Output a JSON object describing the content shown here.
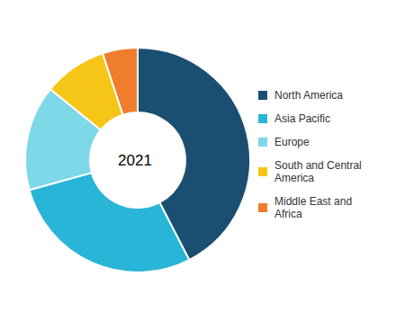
{
  "chart_data": {
    "type": "pie",
    "categories": [
      "North America",
      "Asia Pacific",
      "Europe",
      "South and Central\nAmerica",
      "Middle East and\nAfrica"
    ],
    "values": [
      42,
      28,
      15,
      9,
      5
    ],
    "colors": [
      "#1b4f72",
      "#29b5d8",
      "#7dd8e8",
      "#f5c518",
      "#f07d2b"
    ],
    "annotations": [
      "2021"
    ],
    "legend": "right"
  }
}
